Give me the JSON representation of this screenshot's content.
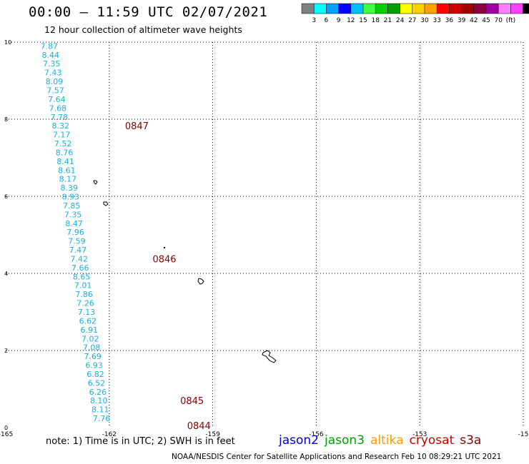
{
  "header": {
    "title": "00:00 – 11:59 UTC 02/07/2021",
    "subtitle": "12 hour collection of altimeter wave heights"
  },
  "colorbar": {
    "colors": [
      "#808080",
      "#00ffff",
      "#00a0ff",
      "#0000ff",
      "#00c0ff",
      "#40ff40",
      "#00d000",
      "#00a000",
      "#ffff00",
      "#ffd000",
      "#ffa000",
      "#ff0000",
      "#d00000",
      "#a00000",
      "#8b0040",
      "#a000a0",
      "#ff80ff",
      "#ff40ff",
      "#000000"
    ],
    "labels": [
      "3",
      "6",
      "9",
      "12",
      "15",
      "18",
      "21",
      "24",
      "27",
      "30",
      "33",
      "36",
      "39",
      "42",
      "45",
      "70",
      "(ft)"
    ]
  },
  "footer": {
    "note": "note: 1) Time is in UTC; 2) SWH is in feet",
    "credit": "NOAA/NESDIS Center for Satellite Applications and Research     Feb 10 08:29:21 UTC 2021"
  },
  "satellites": [
    {
      "name": "jason2",
      "color": "#0000cc"
    },
    {
      "name": "jason3",
      "color": "#00a000"
    },
    {
      "name": "altika",
      "color": "#ff9900"
    },
    {
      "name": "cryosat",
      "color": "#cc0000"
    },
    {
      "name": "s3a",
      "color": "#8b0000"
    }
  ],
  "chart_data": {
    "type": "scatter",
    "xlim": [
      -165,
      -150
    ],
    "ylim": [
      0,
      10
    ],
    "x_ticks": [
      "-165",
      "-162",
      "-159",
      "-156",
      "-153",
      "-15"
    ],
    "y_ticks": [
      "0",
      "2",
      "4",
      "6",
      "8",
      "10"
    ],
    "grid": "dotted",
    "series": [
      {
        "color": "#1ab0e0",
        "points": [
          {
            "x": -163.74,
            "y": 9.9,
            "label": "7.87"
          },
          {
            "x": -163.7,
            "y": 9.67,
            "label": "8.44"
          },
          {
            "x": -163.67,
            "y": 9.44,
            "label": "7.35"
          },
          {
            "x": -163.63,
            "y": 9.21,
            "label": "7.43"
          },
          {
            "x": -163.59,
            "y": 8.98,
            "label": "8.09"
          },
          {
            "x": -163.56,
            "y": 8.75,
            "label": "7.57"
          },
          {
            "x": -163.52,
            "y": 8.52,
            "label": "7.64"
          },
          {
            "x": -163.49,
            "y": 8.29,
            "label": "7.68"
          },
          {
            "x": -163.45,
            "y": 8.06,
            "label": "7.78"
          },
          {
            "x": -163.41,
            "y": 7.83,
            "label": "8.32"
          },
          {
            "x": -163.38,
            "y": 7.6,
            "label": "7.17"
          },
          {
            "x": -163.34,
            "y": 7.37,
            "label": "7.52"
          },
          {
            "x": -163.3,
            "y": 7.14,
            "label": "8.76"
          },
          {
            "x": -163.27,
            "y": 6.91,
            "label": "8.41"
          },
          {
            "x": -163.23,
            "y": 6.68,
            "label": "8.61"
          },
          {
            "x": -163.2,
            "y": 6.45,
            "label": "8.17"
          },
          {
            "x": -163.16,
            "y": 6.22,
            "label": "8.39"
          },
          {
            "x": -163.12,
            "y": 5.99,
            "label": "8.93"
          },
          {
            "x": -163.09,
            "y": 5.76,
            "label": "7.85"
          },
          {
            "x": -163.05,
            "y": 5.53,
            "label": "7.35"
          },
          {
            "x": -163.02,
            "y": 5.3,
            "label": "8.47"
          },
          {
            "x": -162.98,
            "y": 5.07,
            "label": "7.96"
          },
          {
            "x": -162.94,
            "y": 4.84,
            "label": "7.59"
          },
          {
            "x": -162.91,
            "y": 4.61,
            "label": "7.47"
          },
          {
            "x": -162.87,
            "y": 4.38,
            "label": "7.42"
          },
          {
            "x": -162.84,
            "y": 4.15,
            "label": "7.66"
          },
          {
            "x": -162.8,
            "y": 3.92,
            "label": "8.65"
          },
          {
            "x": -162.76,
            "y": 3.69,
            "label": "7.01"
          },
          {
            "x": -162.73,
            "y": 3.46,
            "label": "7.86"
          },
          {
            "x": -162.69,
            "y": 3.23,
            "label": "7.26"
          },
          {
            "x": -162.66,
            "y": 3.0,
            "label": "7.13"
          },
          {
            "x": -162.62,
            "y": 2.77,
            "label": "6.62"
          },
          {
            "x": -162.58,
            "y": 2.54,
            "label": "6.91"
          },
          {
            "x": -162.55,
            "y": 2.31,
            "label": "7.02"
          },
          {
            "x": -162.51,
            "y": 2.08,
            "label": "7.08"
          },
          {
            "x": -162.48,
            "y": 1.85,
            "label": "7.69"
          },
          {
            "x": -162.44,
            "y": 1.62,
            "label": "6.93"
          },
          {
            "x": -162.4,
            "y": 1.39,
            "label": "6.82"
          },
          {
            "x": -162.37,
            "y": 1.16,
            "label": "6.52"
          },
          {
            "x": -162.33,
            "y": 0.93,
            "label": "6.26"
          },
          {
            "x": -162.3,
            "y": 0.7,
            "label": "8.10"
          },
          {
            "x": -162.26,
            "y": 0.47,
            "label": "8.11"
          },
          {
            "x": -162.22,
            "y": 0.24,
            "label": "7.76"
          }
        ]
      }
    ],
    "time_labels": [
      {
        "x": -161.2,
        "y": 7.83,
        "label": "0847",
        "color": "#8b0000"
      },
      {
        "x": -160.4,
        "y": 4.38,
        "label": "0846",
        "color": "#8b0000"
      },
      {
        "x": -159.6,
        "y": 0.7,
        "label": "0845",
        "color": "#8b0000"
      },
      {
        "x": -159.4,
        "y": 0.06,
        "label": "0844",
        "color": "#8b0000"
      }
    ]
  }
}
